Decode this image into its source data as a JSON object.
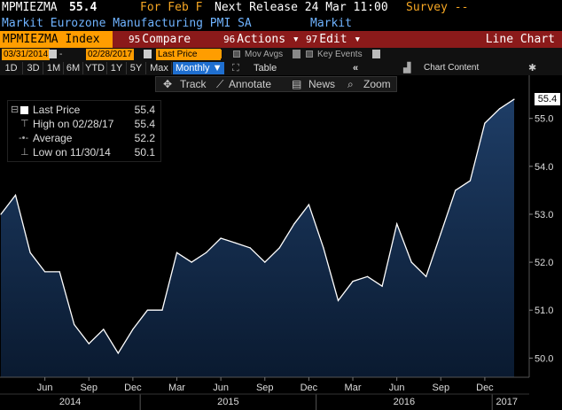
{
  "header": {
    "ticker": "MPMIEZMA",
    "last_value": "55.4",
    "for_label": "For Feb F",
    "next_release": "Next Release 24 Mar 11:00",
    "survey": "Survey --",
    "description": "Markit Eurozone Manufacturing PMI SA",
    "source": "Markit"
  },
  "toolbar": {
    "security": "MPMIEZMA Index",
    "compare_num": "95",
    "compare_label": "Compare",
    "actions_num": "96",
    "actions_label": "Actions",
    "edit_num": "97",
    "edit_label": "Edit",
    "chart_type": "Line Chart"
  },
  "date_range": {
    "start": "03/31/2014",
    "end": "02/28/2017",
    "field": "Last Price",
    "mov_avgs": "Mov Avgs",
    "key_events": "Key Events"
  },
  "periods": [
    "1D",
    "3D",
    "1M",
    "6M",
    "YTD",
    "1Y",
    "5Y",
    "Max"
  ],
  "frequency": "Monthly",
  "table_label": "Table",
  "collapse_label": "«",
  "chart_content_label": "Chart Content",
  "chart_tools": {
    "track": "Track",
    "annotate": "Annotate",
    "news": "News",
    "zoom": "Zoom"
  },
  "legend": {
    "items": [
      {
        "name": "Last Price",
        "value": "55.4"
      },
      {
        "name": "High on 02/28/17",
        "value": "55.4"
      },
      {
        "name": "Average",
        "value": "52.2"
      },
      {
        "name": "Low on 11/30/14",
        "value": "50.1"
      }
    ]
  },
  "last_tag": "55.4",
  "colors": {
    "amber": "#ff9d00",
    "title_bar": "#8b1a1a",
    "area_fill_top": "#1e3d66",
    "area_fill_bottom": "#0a1a30",
    "line": "#ffffff",
    "selected": "#1f6fd0"
  },
  "chart_data": {
    "type": "area",
    "x": [
      "2014-03",
      "2014-04",
      "2014-05",
      "2014-06",
      "2014-07",
      "2014-08",
      "2014-09",
      "2014-10",
      "2014-11",
      "2014-12",
      "2015-01",
      "2015-02",
      "2015-03",
      "2015-04",
      "2015-05",
      "2015-06",
      "2015-07",
      "2015-08",
      "2015-09",
      "2015-10",
      "2015-11",
      "2015-12",
      "2016-01",
      "2016-02",
      "2016-03",
      "2016-04",
      "2016-05",
      "2016-06",
      "2016-07",
      "2016-08",
      "2016-09",
      "2016-10",
      "2016-11",
      "2016-12",
      "2017-01",
      "2017-02"
    ],
    "values": [
      53.0,
      53.4,
      52.2,
      51.8,
      51.8,
      50.7,
      50.3,
      50.6,
      50.1,
      50.6,
      51.0,
      51.0,
      52.2,
      52.0,
      52.2,
      52.5,
      52.4,
      52.3,
      52.0,
      52.3,
      52.8,
      53.2,
      52.3,
      51.2,
      51.6,
      51.7,
      51.5,
      52.8,
      52.0,
      51.7,
      52.6,
      53.5,
      53.7,
      54.9,
      55.2,
      55.4
    ],
    "ylim": [
      49.6,
      55.9
    ],
    "yticks": [
      "50.0",
      "51.0",
      "52.0",
      "53.0",
      "54.0",
      "55.0"
    ],
    "month_labels": [
      "Jun",
      "Sep",
      "Dec",
      "Mar",
      "Jun",
      "Sep",
      "Dec",
      "Mar",
      "Jun",
      "Sep",
      "Dec"
    ],
    "year_labels": [
      "2014",
      "2015",
      "2016",
      "2017"
    ]
  }
}
